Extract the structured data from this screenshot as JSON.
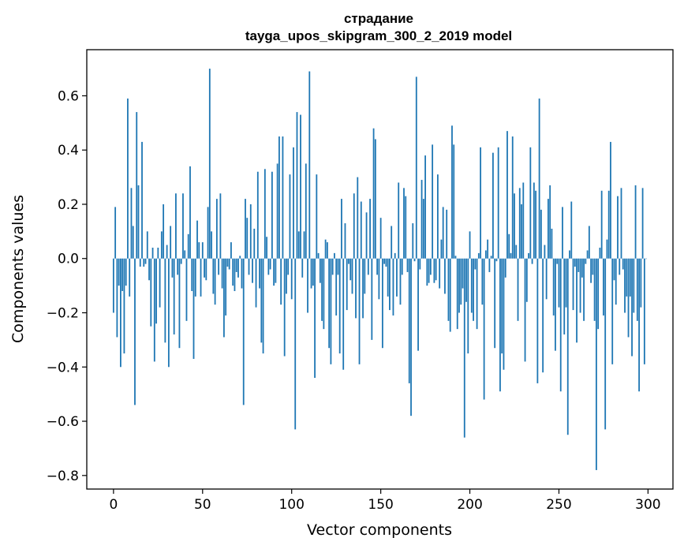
{
  "chart_data": {
    "type": "bar",
    "title": "страдание",
    "subtitle": "tayga_upos_skipgram_300_2_2019 model",
    "xlabel": "Vector components",
    "ylabel": "Components values",
    "xlim": [
      -15,
      314
    ],
    "ylim": [
      -0.85,
      0.77
    ],
    "xticks": [
      0,
      50,
      100,
      150,
      200,
      250,
      300
    ],
    "xtick_labels": [
      "0",
      "50",
      "100",
      "150",
      "200",
      "250",
      "300"
    ],
    "yticks": [
      -0.8,
      -0.6,
      -0.4,
      -0.2,
      0.0,
      0.2,
      0.4,
      0.6
    ],
    "ytick_labels": [
      "−0.8",
      "−0.6",
      "−0.4",
      "−0.2",
      "0.0",
      "0.2",
      "0.4",
      "0.6"
    ],
    "grid": false,
    "bar_color": "#1f77b4",
    "x": "component index 0–299",
    "values": [
      -0.2,
      0.19,
      -0.29,
      -0.1,
      -0.4,
      -0.12,
      -0.35,
      -0.1,
      0.59,
      -0.14,
      0.26,
      0.12,
      -0.54,
      0.54,
      0.27,
      -0.03,
      0.43,
      -0.03,
      -0.02,
      0.1,
      -0.08,
      -0.25,
      0.04,
      -0.38,
      -0.24,
      0.04,
      -0.18,
      0.1,
      0.2,
      -0.31,
      0.05,
      -0.4,
      0.12,
      -0.07,
      -0.28,
      0.24,
      -0.06,
      -0.33,
      -0.02,
      0.24,
      0.03,
      -0.23,
      0.09,
      0.34,
      -0.12,
      -0.37,
      -0.14,
      0.14,
      0.06,
      -0.14,
      0.06,
      -0.07,
      -0.08,
      0.19,
      0.7,
      0.1,
      -0.13,
      -0.17,
      0.22,
      -0.06,
      0.24,
      -0.11,
      -0.29,
      -0.21,
      -0.03,
      -0.04,
      0.06,
      -0.1,
      -0.12,
      -0.05,
      -0.07,
      0.01,
      -0.11,
      -0.54,
      0.22,
      0.15,
      -0.06,
      0.2,
      -0.09,
      0.11,
      -0.18,
      0.32,
      -0.11,
      -0.31,
      -0.35,
      0.33,
      0.08,
      -0.06,
      -0.04,
      0.32,
      -0.1,
      -0.09,
      0.35,
      0.45,
      -0.17,
      0.45,
      -0.36,
      -0.13,
      -0.06,
      0.31,
      -0.15,
      0.41,
      -0.63,
      0.54,
      0.1,
      0.53,
      -0.07,
      0.1,
      0.35,
      -0.2,
      0.69,
      -0.11,
      -0.1,
      -0.44,
      0.31,
      0.02,
      -0.09,
      -0.23,
      -0.26,
      0.07,
      0.06,
      -0.33,
      -0.39,
      -0.06,
      0.02,
      -0.21,
      -0.06,
      -0.35,
      0.22,
      -0.41,
      0.13,
      -0.19,
      -0.02,
      -0.08,
      -0.13,
      0.24,
      -0.22,
      0.3,
      -0.39,
      0.21,
      -0.22,
      -0.13,
      0.17,
      -0.06,
      0.22,
      -0.3,
      0.48,
      0.44,
      -0.06,
      -0.15,
      0.15,
      -0.33,
      -0.02,
      -0.03,
      -0.14,
      -0.19,
      0.12,
      -0.21,
      0.02,
      -0.14,
      0.28,
      -0.17,
      -0.06,
      0.26,
      0.23,
      -0.05,
      -0.46,
      -0.58,
      0.13,
      -0.01,
      0.67,
      -0.34,
      -0.04,
      0.29,
      0.22,
      0.38,
      -0.1,
      -0.09,
      -0.06,
      0.42,
      -0.09,
      -0.08,
      0.31,
      -0.11,
      0.07,
      0.19,
      -0.13,
      0.18,
      -0.23,
      -0.27,
      0.49,
      0.42,
      0.01,
      -0.26,
      -0.2,
      -0.17,
      -0.11,
      -0.66,
      -0.16,
      -0.35,
      0.1,
      -0.2,
      -0.23,
      -0.04,
      -0.26,
      0.02,
      0.41,
      -0.17,
      -0.52,
      0.03,
      0.07,
      -0.05,
      0.01,
      0.39,
      -0.33,
      -0.01,
      0.41,
      -0.49,
      -0.35,
      -0.41,
      -0.07,
      0.47,
      0.09,
      0.02,
      0.45,
      0.24,
      0.05,
      -0.23,
      0.26,
      0.2,
      0.28,
      -0.38,
      -0.16,
      0.02,
      0.41,
      -0.02,
      0.28,
      0.25,
      -0.46,
      0.59,
      0.18,
      -0.42,
      0.05,
      -0.15,
      0.22,
      0.27,
      0.11,
      -0.21,
      -0.34,
      -0.02,
      -0.18,
      -0.49,
      0.19,
      -0.28,
      -0.18,
      -0.65,
      0.03,
      0.21,
      -0.19,
      -0.03,
      -0.31,
      -0.05,
      -0.2,
      -0.07,
      -0.23,
      -0.02,
      0.03,
      0.12,
      -0.09,
      -0.06,
      -0.23,
      -0.78,
      -0.26,
      0.04,
      0.25,
      -0.21,
      -0.63,
      0.07,
      0.25,
      0.43,
      -0.39,
      -0.08,
      -0.17,
      0.23,
      -0.06,
      0.26,
      -0.04,
      -0.2,
      -0.14,
      -0.29,
      -0.14,
      -0.36,
      -0.2,
      0.27,
      -0.23,
      -0.49,
      -0.18,
      0.26,
      -0.39,
      0.0
    ]
  }
}
